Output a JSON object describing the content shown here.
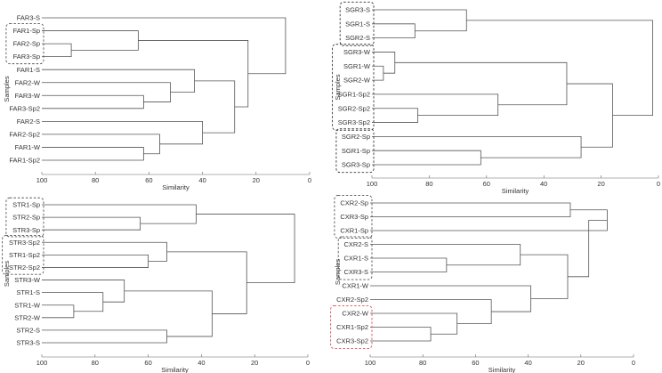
{
  "chart_data": [
    {
      "type": "dendrogram",
      "xlabel": "Similarity",
      "ylabel": "Samples",
      "xlim": [
        100,
        0
      ],
      "xticks": [
        "100",
        "80",
        "60",
        "40",
        "20",
        "0"
      ],
      "leaves": [
        "FAR3-S",
        "FAR1-Sp",
        "FAR2-Sp",
        "FAR3-Sp",
        "FAR1-S",
        "FAR2-W",
        "FAR3-W",
        "FAR3-Sp2",
        "FAR2-S",
        "FAR2-Sp2",
        "FAR1-W",
        "FAR1-Sp2"
      ],
      "merges": [
        {
          "a": 2,
          "b": 3,
          "similarity": 89
        },
        {
          "a": 1,
          "b": 12,
          "similarity": 64
        },
        {
          "a": 6,
          "b": 7,
          "similarity": 62
        },
        {
          "a": 5,
          "b": 14,
          "similarity": 52
        },
        {
          "a": 4,
          "b": 15,
          "similarity": 43
        },
        {
          "a": 10,
          "b": 11,
          "similarity": 62
        },
        {
          "a": 9,
          "b": 17,
          "similarity": 56
        },
        {
          "a": 8,
          "b": 18,
          "similarity": 40
        },
        {
          "a": 16,
          "b": 19,
          "similarity": 28
        },
        {
          "a": 13,
          "b": 20,
          "similarity": 23
        },
        {
          "a": 0,
          "b": 21,
          "similarity": 9
        }
      ],
      "highlight_groups": [
        {
          "leaves": [
            "FAR1-Sp",
            "FAR2-Sp",
            "FAR3-Sp"
          ],
          "color": "#555555"
        }
      ]
    },
    {
      "type": "dendrogram",
      "xlabel": "Similarity",
      "ylabel": "Samples",
      "xlim": [
        100,
        0
      ],
      "xticks": [
        "100",
        "80",
        "60",
        "40",
        "20",
        "0"
      ],
      "leaves": [
        "SGR3-S",
        "SGR1-S",
        "SGR2-S",
        "SGR3-W",
        "SGR1-W",
        "SGR2-W",
        "SGR1-Sp2",
        "SGR2-Sp2",
        "SGR3-Sp2",
        "SGR2-Sp",
        "SGR1-Sp",
        "SGR3-Sp"
      ],
      "merges": [
        {
          "a": 1,
          "b": 2,
          "similarity": 85
        },
        {
          "a": 0,
          "b": 12,
          "similarity": 67
        },
        {
          "a": 4,
          "b": 5,
          "similarity": 96
        },
        {
          "a": 3,
          "b": 14,
          "similarity": 92
        },
        {
          "a": 7,
          "b": 8,
          "similarity": 84
        },
        {
          "a": 6,
          "b": 16,
          "similarity": 56
        },
        {
          "a": 15,
          "b": 17,
          "similarity": 32
        },
        {
          "a": 10,
          "b": 11,
          "similarity": 62
        },
        {
          "a": 9,
          "b": 19,
          "similarity": 27
        },
        {
          "a": 18,
          "b": 20,
          "similarity": 16
        },
        {
          "a": 13,
          "b": 21,
          "similarity": 2
        }
      ],
      "highlight_groups": [
        {
          "leaves": [
            "SGR3-S",
            "SGR1-S",
            "SGR2-S"
          ],
          "color": "#333333"
        },
        {
          "leaves": [
            "SGR3-W",
            "SGR1-W",
            "SGR2-W",
            "SGR1-Sp2",
            "SGR2-Sp2",
            "SGR3-Sp2"
          ],
          "color": "#333333"
        },
        {
          "leaves": [
            "SGR2-Sp",
            "SGR1-Sp",
            "SGR3-Sp"
          ],
          "color": "#333333"
        }
      ]
    },
    {
      "type": "dendrogram",
      "xlabel": "Similarity",
      "ylabel": "Samples",
      "xlim": [
        100,
        0
      ],
      "xticks": [
        "100",
        "80",
        "60",
        "40",
        "20",
        "0"
      ],
      "leaves": [
        "STR1-Sp",
        "STR2-Sp",
        "STR3-Sp",
        "STR3-Sp2",
        "STR1-Sp2",
        "STR2-Sp2",
        "STR3-W",
        "STR1-S",
        "STR1-W",
        "STR2-W",
        "STR2-S",
        "STR3-S"
      ],
      "merges": [
        {
          "a": 1,
          "b": 2,
          "similarity": 63
        },
        {
          "a": 0,
          "b": 12,
          "similarity": 42
        },
        {
          "a": 4,
          "b": 5,
          "similarity": 60
        },
        {
          "a": 3,
          "b": 14,
          "similarity": 53
        },
        {
          "a": 8,
          "b": 9,
          "similarity": 88
        },
        {
          "a": 7,
          "b": 16,
          "similarity": 77
        },
        {
          "a": 6,
          "b": 17,
          "similarity": 69
        },
        {
          "a": 10,
          "b": 11,
          "similarity": 53
        },
        {
          "a": 18,
          "b": 19,
          "similarity": 36
        },
        {
          "a": 15,
          "b": 20,
          "similarity": 23
        },
        {
          "a": 13,
          "b": 21,
          "similarity": 5
        }
      ],
      "highlight_groups": [
        {
          "leaves": [
            "STR1-Sp",
            "STR2-Sp",
            "STR3-Sp"
          ],
          "color": "#555555"
        },
        {
          "leaves": [
            "STR3-Sp2",
            "STR1-Sp2",
            "STR2-Sp2"
          ],
          "color": "#555555"
        }
      ]
    },
    {
      "type": "dendrogram",
      "xlabel": "Similarity",
      "ylabel": "Samples",
      "xlim": [
        100,
        0
      ],
      "xticks": [
        "100",
        "80",
        "60",
        "40",
        "20",
        "0"
      ],
      "leaves": [
        "CXR2-Sp",
        "CXR3-Sp",
        "CXR1-Sp",
        "CXR2-S",
        "CXR1-S",
        "CXR3-S",
        "CXR1-W",
        "CXR2-Sp2",
        "CXR2-W",
        "CXR1-Sp2",
        "CXR3-Sp2"
      ],
      "merges": [
        {
          "a": 0,
          "b": 1,
          "similarity": 24
        },
        {
          "a": 2,
          "b": 11,
          "similarity": 10
        },
        {
          "a": 4,
          "b": 5,
          "similarity": 71
        },
        {
          "a": 3,
          "b": 13,
          "similarity": 43
        },
        {
          "a": 9,
          "b": 10,
          "similarity": 77
        },
        {
          "a": 8,
          "b": 15,
          "similarity": 67
        },
        {
          "a": 7,
          "b": 16,
          "similarity": 54
        },
        {
          "a": 6,
          "b": 17,
          "similarity": 39
        },
        {
          "a": 14,
          "b": 18,
          "similarity": 25
        },
        {
          "a": 12,
          "b": 19,
          "similarity": 17
        }
      ],
      "highlight_groups": [
        {
          "leaves": [
            "CXR2-Sp",
            "CXR3-Sp",
            "CXR1-Sp"
          ],
          "color": "#555555"
        },
        {
          "leaves": [
            "CXR2-S",
            "CXR1-S",
            "CXR3-S"
          ],
          "color": "#555555"
        },
        {
          "leaves": [
            "CXR2-W",
            "CXR1-Sp2",
            "CXR3-Sp2"
          ],
          "color": "#d9534f"
        }
      ]
    }
  ]
}
